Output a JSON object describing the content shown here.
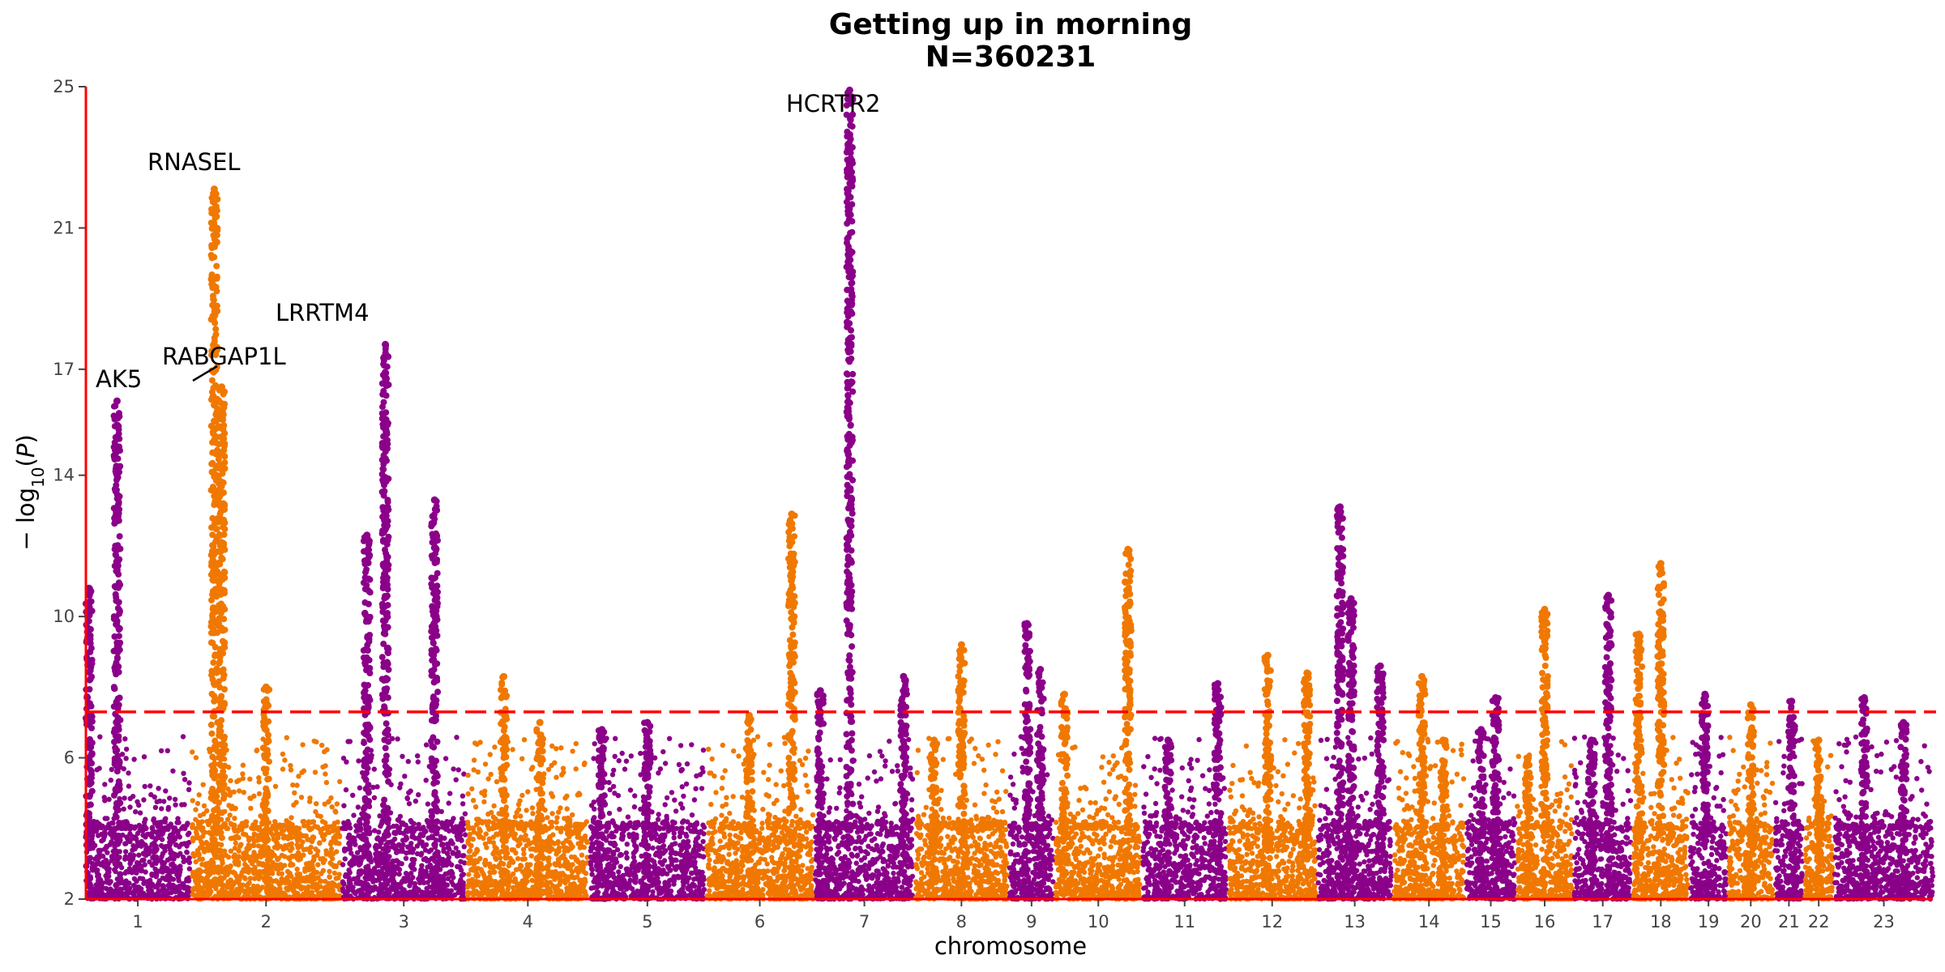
{
  "chart_data": {
    "type": "scatter",
    "title": "Getting up in morning",
    "subtitle": "N=360231",
    "xlabel": "chromosome",
    "ylabel": "−log10(P)",
    "ylim": [
      2,
      25
    ],
    "yticks": [
      2,
      6,
      10,
      14,
      17,
      21,
      25
    ],
    "significance_threshold": 7.3,
    "colors": {
      "odd": "#8b0089",
      "even": "#f07800",
      "threshold": "#ff0000",
      "axis": "#ff0000"
    },
    "chromosomes": [
      {
        "label": "1",
        "max": 16.1,
        "peaks": [
          [
            0.03,
            10.8
          ],
          [
            0.3,
            16.1
          ]
        ]
      },
      {
        "label": "2",
        "max": 22.1,
        "peaks": [
          [
            0.15,
            22.1
          ],
          [
            0.2,
            16.5
          ],
          [
            0.5,
            8.0
          ]
        ]
      },
      {
        "label": "3",
        "max": 17.7,
        "peaks": [
          [
            0.2,
            12.3
          ],
          [
            0.35,
            17.7
          ],
          [
            0.75,
            13.3
          ]
        ]
      },
      {
        "label": "4",
        "max": 8.3,
        "peaks": [
          [
            0.3,
            8.3
          ],
          [
            0.6,
            7.0
          ]
        ]
      },
      {
        "label": "5",
        "max": 7.0,
        "peaks": [
          [
            0.1,
            6.8
          ],
          [
            0.5,
            7.0
          ]
        ]
      },
      {
        "label": "6",
        "max": 12.9,
        "peaks": [
          [
            0.8,
            12.9
          ],
          [
            0.4,
            7.2
          ]
        ]
      },
      {
        "label": "7",
        "max": 24.9,
        "peaks": [
          [
            0.35,
            24.9
          ],
          [
            0.05,
            7.9
          ],
          [
            0.9,
            8.3
          ]
        ]
      },
      {
        "label": "8",
        "max": 9.2,
        "peaks": [
          [
            0.5,
            9.2
          ],
          [
            0.2,
            6.5
          ]
        ]
      },
      {
        "label": "9",
        "max": 9.8,
        "peaks": [
          [
            0.4,
            9.8
          ],
          [
            0.7,
            8.5
          ]
        ]
      },
      {
        "label": "10",
        "max": 11.9,
        "peaks": [
          [
            0.1,
            7.8
          ],
          [
            0.85,
            11.9
          ]
        ]
      },
      {
        "label": "11",
        "max": 8.1,
        "peaks": [
          [
            0.3,
            6.5
          ],
          [
            0.9,
            8.1
          ]
        ]
      },
      {
        "label": "12",
        "max": 8.9,
        "peaks": [
          [
            0.45,
            8.9
          ],
          [
            0.9,
            8.4
          ]
        ]
      },
      {
        "label": "13",
        "max": 13.1,
        "peaks": [
          [
            0.3,
            13.1
          ],
          [
            0.45,
            10.5
          ],
          [
            0.85,
            8.6
          ]
        ]
      },
      {
        "label": "14",
        "max": 8.3,
        "peaks": [
          [
            0.4,
            8.3
          ],
          [
            0.7,
            6.5
          ]
        ]
      },
      {
        "label": "15",
        "max": 7.7,
        "peaks": [
          [
            0.6,
            7.7
          ],
          [
            0.3,
            6.8
          ]
        ]
      },
      {
        "label": "16",
        "max": 10.2,
        "peaks": [
          [
            0.5,
            10.2
          ],
          [
            0.2,
            6.0
          ]
        ]
      },
      {
        "label": "17",
        "max": 10.6,
        "peaks": [
          [
            0.6,
            10.6
          ],
          [
            0.3,
            6.5
          ]
        ]
      },
      {
        "label": "18",
        "max": 11.5,
        "peaks": [
          [
            0.5,
            11.5
          ],
          [
            0.1,
            9.5
          ]
        ]
      },
      {
        "label": "19",
        "max": 7.8,
        "peaks": [
          [
            0.4,
            7.8
          ]
        ]
      },
      {
        "label": "20",
        "max": 7.5,
        "peaks": [
          [
            0.5,
            7.5
          ]
        ]
      },
      {
        "label": "21",
        "max": 7.6,
        "peaks": [
          [
            0.6,
            7.6
          ]
        ]
      },
      {
        "label": "22",
        "max": 6.5,
        "peaks": [
          [
            0.5,
            6.5
          ]
        ]
      },
      {
        "label": "23",
        "max": 7.7,
        "peaks": [
          [
            0.3,
            7.7
          ],
          [
            0.7,
            7.0
          ]
        ]
      }
    ],
    "annotations": [
      {
        "text": "AK5",
        "value": 16.1
      },
      {
        "text": "RNASEL",
        "value": 22.1
      },
      {
        "text": "RABGAP1L",
        "value": 16.5
      },
      {
        "text": "LRRTM4",
        "value": 17.7
      },
      {
        "text": "HCRTR2",
        "value": 24.9
      }
    ]
  }
}
